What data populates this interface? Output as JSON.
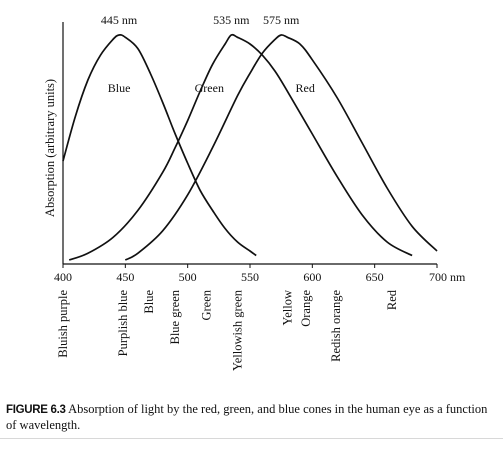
{
  "chart_data": {
    "type": "line",
    "x_unit": "nm",
    "ylabel": "Absorption (arbitrary units)",
    "xlim": [
      400,
      700
    ],
    "ylim": [
      0,
      1
    ],
    "x_ticks": [
      400,
      450,
      500,
      550,
      600,
      650,
      700
    ],
    "x_tick_labels": [
      "400",
      "450",
      "500",
      "550",
      "600",
      "650",
      "700 nm"
    ],
    "peak_labels": [
      "445 nm",
      "535 nm",
      "575 nm"
    ],
    "series": [
      {
        "name": "Blue",
        "x": [
          400,
          410,
          420,
          430,
          440,
          445,
          450,
          460,
          470,
          480,
          490,
          500,
          510,
          520,
          530,
          540,
          550,
          555
        ],
        "y": [
          0.44,
          0.64,
          0.8,
          0.91,
          0.98,
          1.0,
          0.99,
          0.94,
          0.83,
          0.7,
          0.56,
          0.43,
          0.31,
          0.22,
          0.14,
          0.08,
          0.04,
          0.02
        ]
      },
      {
        "name": "Green",
        "x": [
          405,
          420,
          440,
          460,
          480,
          490,
          500,
          510,
          520,
          530,
          535,
          540,
          550,
          560,
          570,
          580,
          600,
          620,
          640,
          660,
          680
        ],
        "y": [
          0.0,
          0.03,
          0.1,
          0.22,
          0.39,
          0.5,
          0.62,
          0.75,
          0.87,
          0.96,
          1.0,
          0.99,
          0.96,
          0.91,
          0.84,
          0.75,
          0.56,
          0.37,
          0.2,
          0.08,
          0.02
        ]
      },
      {
        "name": "Red",
        "x": [
          450,
          460,
          480,
          500,
          520,
          540,
          550,
          560,
          570,
          575,
          580,
          590,
          600,
          620,
          640,
          660,
          680,
          700
        ],
        "y": [
          0.0,
          0.03,
          0.13,
          0.29,
          0.5,
          0.73,
          0.83,
          0.92,
          0.98,
          1.0,
          0.99,
          0.96,
          0.89,
          0.72,
          0.52,
          0.32,
          0.15,
          0.04
        ]
      }
    ],
    "curve_labels": [
      "Blue",
      "Green",
      "Red"
    ],
    "color_labels": [
      {
        "text": "Bluish purple",
        "x": 400
      },
      {
        "text": "Purplish blue",
        "x": 448
      },
      {
        "text": "Blue",
        "x": 469
      },
      {
        "text": "Blue green",
        "x": 490
      },
      {
        "text": "Green",
        "x": 515
      },
      {
        "text": "Yellowish green",
        "x": 540
      },
      {
        "text": "Yellow",
        "x": 580
      },
      {
        "text": "Orange",
        "x": 595
      },
      {
        "text": "Redish orange",
        "x": 619
      },
      {
        "text": "Red",
        "x": 664
      }
    ]
  },
  "caption": {
    "label": "FIGURE 6.3",
    "text": "Absorption of light by the red, green, and blue cones in the human eye as a function of wavelength."
  }
}
